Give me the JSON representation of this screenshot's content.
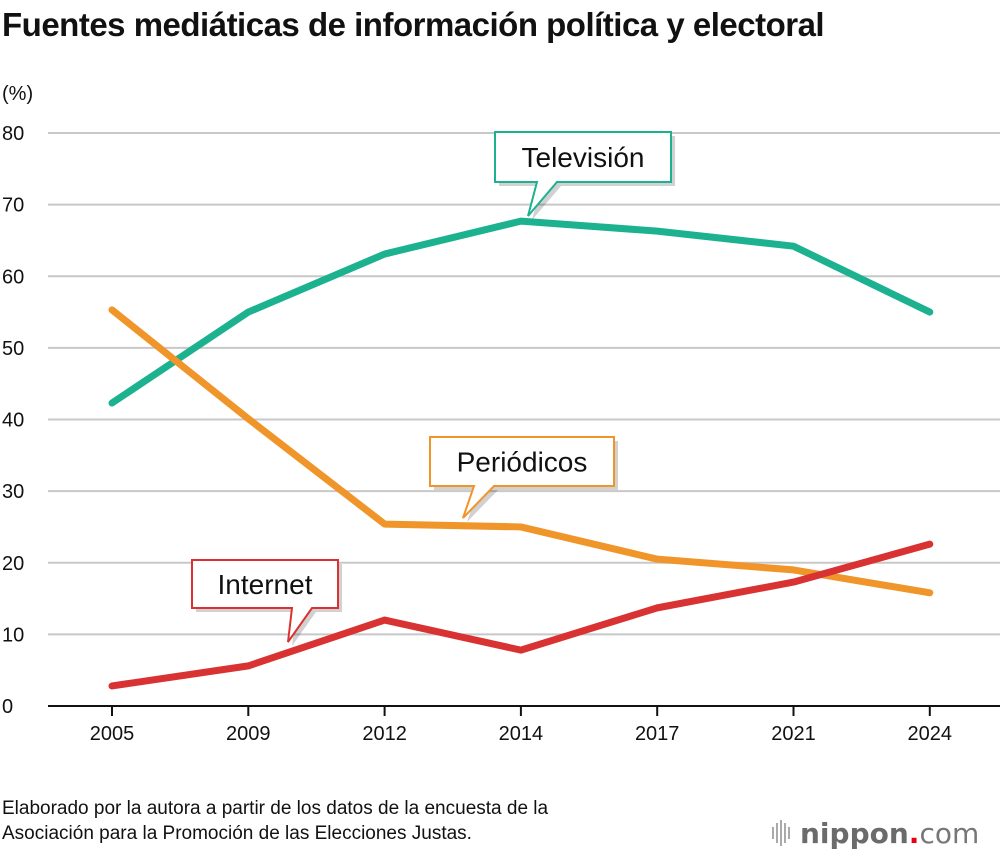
{
  "title": "Fuentes mediáticas de información política y electoral",
  "source": [
    "Elaborado por la autora a partir de los datos de la encuesta de la",
    "Asociación para la Promoción de las Elecciones Justas."
  ],
  "logo": {
    "text": "nippon",
    "dot_com": ".com"
  },
  "chart_data": {
    "type": "line",
    "title": "Fuentes mediáticas de información política y electoral",
    "ylabel": "(%)",
    "xlabel": "",
    "categories": [
      "2005",
      "2009",
      "2012",
      "2014",
      "2017",
      "2021",
      "2024"
    ],
    "ylim": [
      0,
      80
    ],
    "yticks": [
      0,
      10,
      20,
      30,
      40,
      50,
      60,
      70,
      80
    ],
    "grid": true,
    "legend": "callouts on lines",
    "series": [
      {
        "name": "Televisión",
        "color": "#1cb28f",
        "values": [
          42.3,
          55.0,
          63.1,
          67.7,
          66.3,
          64.2,
          55.0
        ]
      },
      {
        "name": "Periódicos",
        "color": "#f0952a",
        "values": [
          55.3,
          40.1,
          25.4,
          25.0,
          20.5,
          19.0,
          15.8
        ]
      },
      {
        "name": "Internet",
        "color": "#d93232",
        "values": [
          2.8,
          5.6,
          12.0,
          7.8,
          13.7,
          17.3,
          22.6
        ]
      }
    ]
  }
}
